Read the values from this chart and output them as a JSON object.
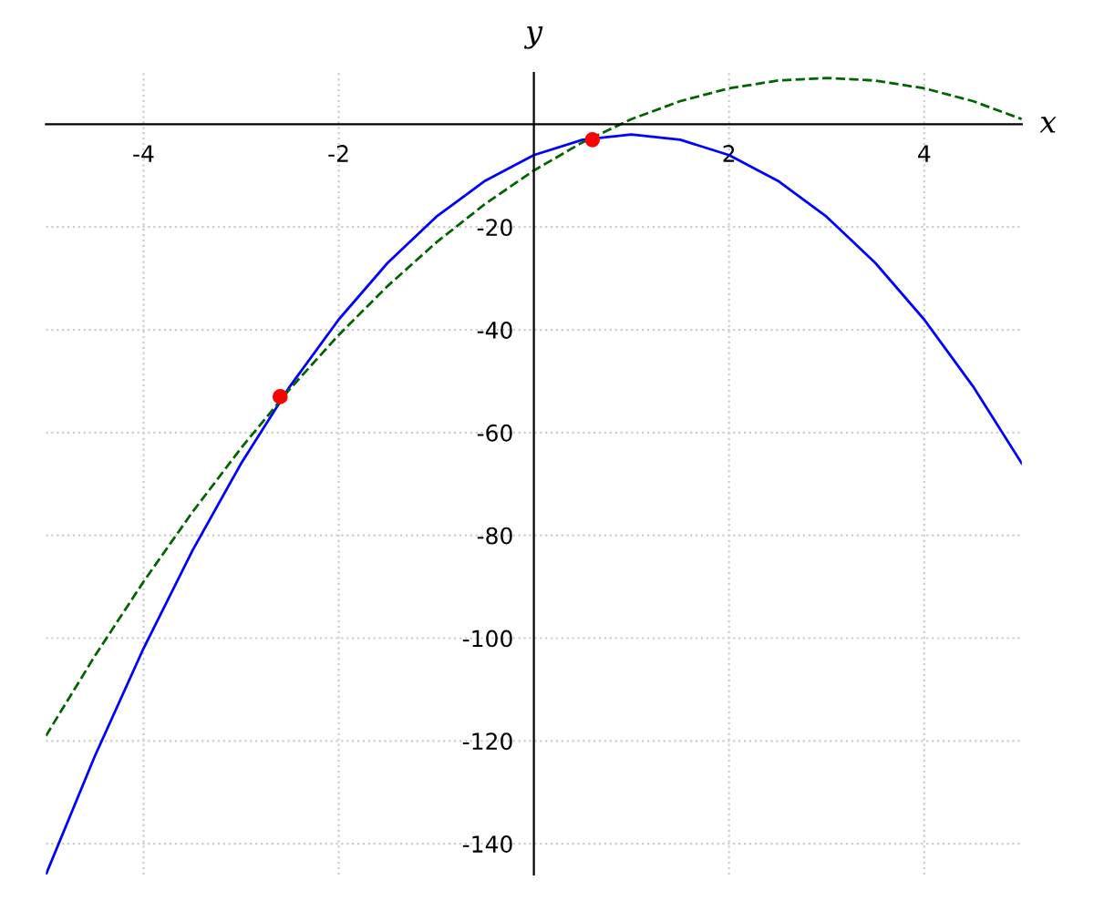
{
  "chart_data": {
    "type": "line",
    "xlabel": "x",
    "ylabel": "y",
    "xlim": [
      -5,
      5
    ],
    "ylim": [
      -146,
      10
    ],
    "xticks": [
      -4,
      -2,
      2,
      4
    ],
    "yticks": [
      -140,
      -120,
      -100,
      -80,
      -60,
      -40,
      -20
    ],
    "grid": true,
    "legend": false,
    "series": [
      {
        "color": "#0000ff",
        "line_style": "solid",
        "x": [
          -5,
          -4.5,
          -4,
          -3.5,
          -3,
          -2.5,
          -2,
          -1.5,
          -1,
          -0.5,
          0,
          0.5,
          1,
          1.5,
          2,
          2.5,
          3,
          3.5,
          4,
          4.5,
          5
        ],
        "values": [
          -146,
          -123,
          -102,
          -83,
          -66,
          -51,
          -38,
          -27,
          -18,
          -11,
          -6,
          -3,
          -2,
          -3,
          -6,
          -11,
          -18,
          -27,
          -38,
          -51,
          -66
        ]
      },
      {
        "color": "#006400",
        "line_style": "dashed",
        "x": [
          -5,
          -4.5,
          -4,
          -3.5,
          -3,
          -2.5,
          -2,
          -1.5,
          -1,
          -0.5,
          0,
          0.5,
          1,
          1.5,
          2,
          2.5,
          3,
          3.5,
          4,
          4.5,
          5
        ],
        "values": [
          -119,
          -103.5,
          -89,
          -75.5,
          -63,
          -51.5,
          -41,
          -31.5,
          -23,
          -15.5,
          -9,
          -3.5,
          1,
          4.5,
          7,
          8.5,
          9,
          8.5,
          7,
          4.5,
          1
        ]
      },
      {
        "type": "scatter",
        "color": "#ff0000",
        "marker": "circle",
        "x": [
          -2.6,
          0.6
        ],
        "values": [
          -53,
          -3
        ]
      }
    ]
  }
}
